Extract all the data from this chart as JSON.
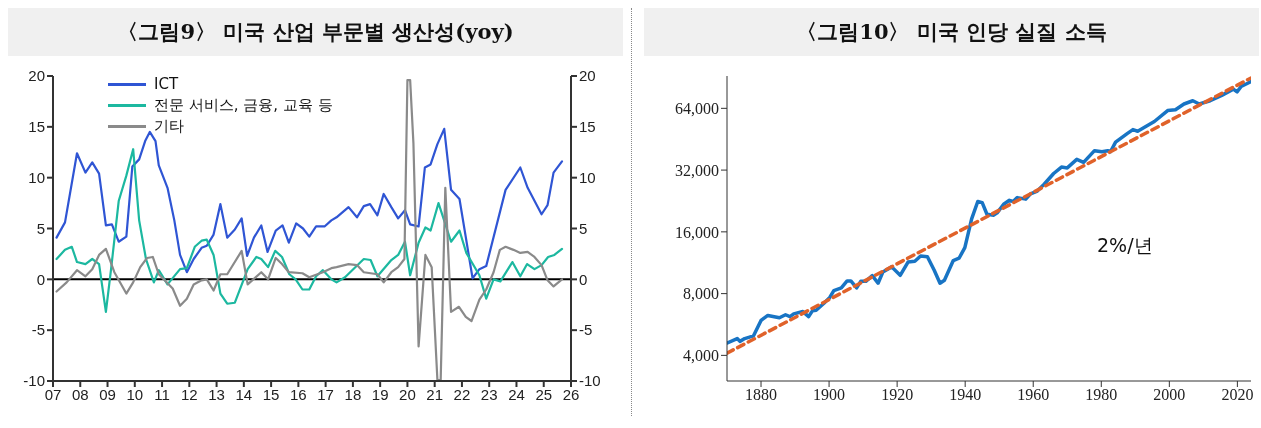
{
  "chart_data": [
    {
      "type": "line",
      "title": "〈그림9〉 미국 산업 부문별 생산성(yoy)",
      "xlim": [
        2007,
        2026
      ],
      "xticks": [
        {
          "value": 2007,
          "label": "07"
        },
        {
          "value": 2008,
          "label": "08"
        },
        {
          "value": 2009,
          "label": "09"
        },
        {
          "value": 2010,
          "label": "10"
        },
        {
          "value": 2011,
          "label": "11"
        },
        {
          "value": 2012,
          "label": "12"
        },
        {
          "value": 2013,
          "label": "13"
        },
        {
          "value": 2014,
          "label": "14"
        },
        {
          "value": 2015,
          "label": "15"
        },
        {
          "value": 2016,
          "label": "16"
        },
        {
          "value": 2017,
          "label": "17"
        },
        {
          "value": 2018,
          "label": "18"
        },
        {
          "value": 2019,
          "label": "19"
        },
        {
          "value": 2020,
          "label": "20"
        },
        {
          "value": 2021,
          "label": "21"
        },
        {
          "value": 2022,
          "label": "22"
        },
        {
          "value": 2023,
          "label": "23"
        },
        {
          "value": 2024,
          "label": "24"
        },
        {
          "value": 2025,
          "label": "25"
        },
        {
          "value": 2026,
          "label": "26"
        }
      ],
      "ylim": [
        -10,
        20
      ],
      "yticks": [
        -10,
        -5,
        0,
        5,
        10,
        15,
        20
      ],
      "y2lim": [
        -10,
        20
      ],
      "y2ticks": [
        -10,
        -5,
        0,
        5,
        10,
        15,
        20
      ],
      "legend": "top left",
      "grid": false,
      "ref_lines": [
        {
          "axis": "y",
          "value": 0,
          "color": "#000000"
        }
      ],
      "series": [
        {
          "name": "ICT",
          "color": "#2f55d4",
          "x": [
            2007.13,
            2007.44,
            2007.88,
            2008.19,
            2008.44,
            2008.69,
            2008.94,
            2009.16,
            2009.41,
            2009.69,
            2009.91,
            2010.16,
            2010.38,
            2010.55,
            2010.76,
            2010.88,
            2011.2,
            2011.45,
            2011.66,
            2011.91,
            2012.16,
            2012.45,
            2012.64,
            2012.89,
            2013.14,
            2013.39,
            2013.67,
            2013.92,
            2014.12,
            2014.37,
            2014.64,
            2014.87,
            2015.17,
            2015.42,
            2015.65,
            2015.92,
            2016.17,
            2016.4,
            2016.65,
            2016.96,
            2017.21,
            2017.4,
            2017.84,
            2018.15,
            2018.4,
            2018.63,
            2018.9,
            2019.13,
            2019.41,
            2019.66,
            2019.91,
            2020.1,
            2020.41,
            2020.64,
            2020.85,
            2021.1,
            2021.35,
            2021.6,
            2021.91,
            2022.39,
            2022.64,
            2022.89,
            2023.6,
            2024.14,
            2024.41,
            2024.92,
            2025.14,
            2025.36,
            2025.67
          ],
          "values": [
            4.1,
            5.6,
            12.4,
            10.5,
            11.5,
            10.4,
            5.3,
            5.4,
            3.7,
            4.2,
            11.1,
            11.8,
            13.6,
            14.5,
            13.6,
            11.2,
            9.0,
            5.8,
            2.4,
            0.7,
            2.0,
            3.1,
            3.3,
            4.4,
            7.4,
            4.1,
            4.9,
            6.0,
            2.3,
            4.1,
            5.3,
            2.7,
            4.8,
            5.3,
            3.6,
            5.5,
            5.0,
            4.2,
            5.2,
            5.2,
            5.8,
            6.1,
            7.1,
            6.1,
            7.2,
            7.4,
            6.3,
            8.4,
            7.1,
            6.0,
            6.8,
            5.4,
            5.2,
            11.0,
            11.3,
            13.3,
            14.8,
            8.8,
            7.9,
            0.1,
            1.0,
            1.3,
            8.8,
            11.0,
            9.0,
            6.4,
            7.3,
            10.5,
            11.6
          ]
        },
        {
          "name": "전문 서비스, 금융, 교육 등",
          "color": "#1cb8a0",
          "x": [
            2007.13,
            2007.44,
            2007.69,
            2007.88,
            2008.19,
            2008.44,
            2008.69,
            2008.94,
            2009.13,
            2009.41,
            2009.69,
            2009.94,
            2010.16,
            2010.41,
            2010.7,
            2010.88,
            2011.2,
            2011.66,
            2011.91,
            2012.2,
            2012.45,
            2012.64,
            2012.89,
            2013.14,
            2013.39,
            2013.67,
            2014.14,
            2014.46,
            2014.64,
            2014.89,
            2015.15,
            2015.4,
            2015.67,
            2015.9,
            2016.15,
            2016.4,
            2016.65,
            2016.9,
            2017.21,
            2017.4,
            2017.71,
            2018.4,
            2018.65,
            2018.9,
            2019.41,
            2019.66,
            2019.91,
            2020.1,
            2020.41,
            2020.66,
            2020.85,
            2021.14,
            2021.6,
            2021.91,
            2022.16,
            2022.64,
            2022.89,
            2023.16,
            2023.41,
            2023.85,
            2024.14,
            2024.39,
            2024.66,
            2024.92,
            2025.16,
            2025.39,
            2025.67
          ],
          "values": [
            2.0,
            2.9,
            3.2,
            1.7,
            1.5,
            2.0,
            1.5,
            -3.2,
            1.0,
            7.7,
            10.2,
            12.8,
            5.8,
            2.0,
            -0.3,
            0.9,
            -0.5,
            1.0,
            1.1,
            3.2,
            3.8,
            3.9,
            2.4,
            -1.4,
            -2.4,
            -2.3,
            1.0,
            2.2,
            2.0,
            1.2,
            2.8,
            2.2,
            0.5,
            0,
            -1.0,
            -1.0,
            0.3,
            0.9,
            0,
            -0.3,
            0.2,
            2.0,
            1.9,
            0.3,
            1.9,
            2.4,
            3.7,
            0.4,
            3.6,
            5.1,
            4.8,
            7.5,
            3.7,
            4.8,
            2.6,
            0.4,
            -1.9,
            0,
            -0.2,
            1.7,
            0.3,
            1.5,
            1.0,
            1.4,
            2.2,
            2.4,
            3.0
          ]
        },
        {
          "name": "기타",
          "color": "#8a8a8a",
          "x": [
            2007.13,
            2007.5,
            2007.88,
            2008.19,
            2008.44,
            2008.69,
            2008.94,
            2009.25,
            2009.69,
            2009.94,
            2010.2,
            2010.45,
            2010.66,
            2010.88,
            2011.39,
            2011.66,
            2011.91,
            2012.16,
            2012.45,
            2012.64,
            2012.89,
            2013.14,
            2013.39,
            2013.92,
            2014.14,
            2014.64,
            2014.89,
            2015.17,
            2015.4,
            2015.65,
            2016.15,
            2016.4,
            2016.9,
            2017.21,
            2017.4,
            2017.84,
            2018.15,
            2018.4,
            2018.9,
            2019.13,
            2019.41,
            2019.66,
            2019.89,
            2020.0,
            2020.1,
            2020.22,
            2020.41,
            2020.66,
            2020.89,
            2021.1,
            2021.22,
            2021.39,
            2021.6,
            2021.89,
            2022.14,
            2022.35,
            2022.64,
            2022.89,
            2023.16,
            2023.39,
            2023.6,
            2023.89,
            2024.14,
            2024.41,
            2024.66,
            2024.92,
            2025.14,
            2025.36,
            2025.67
          ],
          "values": [
            -1.2,
            -0.3,
            0.9,
            0.3,
            1.0,
            2.4,
            3.0,
            0.7,
            -1.4,
            -0.3,
            1.2,
            2.1,
            2.2,
            0.5,
            -0.9,
            -2.6,
            -1.9,
            -0.5,
            -0.1,
            0,
            -1.1,
            0.5,
            0.5,
            2.8,
            -0.5,
            0.7,
            0,
            2.1,
            1.5,
            0.7,
            0.6,
            0.2,
            0.7,
            1.1,
            1.2,
            1.5,
            1.4,
            0.7,
            0.5,
            -0.3,
            0.7,
            1.2,
            2.0,
            19.6,
            19.6,
            13.4,
            -6.6,
            2.4,
            1.2,
            -9.9,
            -9.9,
            9.0,
            -3.2,
            -2.7,
            -3.7,
            -4.1,
            -2.0,
            -1.0,
            0.7,
            2.9,
            3.2,
            2.9,
            2.6,
            2.7,
            2.2,
            1.4,
            -0.1,
            -0.7,
            0
          ]
        }
      ]
    },
    {
      "type": "line",
      "title": "〈그림10〉 미국 인당 실질 소득",
      "xlim": [
        1870,
        2024
      ],
      "xticks": [
        1880,
        1900,
        1920,
        1940,
        1960,
        1980,
        2000,
        2020
      ],
      "log": true,
      "ylim": [
        3000,
        92000
      ],
      "yticks": [
        {
          "value": 4000,
          "label": "4,000"
        },
        {
          "value": 8000,
          "label": "8,000"
        },
        {
          "value": 16000,
          "label": "16,000"
        },
        {
          "value": 32000,
          "label": "32,000"
        },
        {
          "value": 64000,
          "label": "64,000"
        }
      ],
      "grid": false,
      "legend": false,
      "annotations": [
        "2%/년"
      ],
      "series": [
        {
          "color": "#1874c4",
          "x": [
            1870.1,
            1873,
            1873.8,
            1875.2,
            1877.8,
            1880,
            1882,
            1885.4,
            1887.2,
            1888.5,
            1889.6,
            1892.3,
            1894,
            1895.1,
            1896.2,
            1898.5,
            1900.2,
            1901.4,
            1903.6,
            1905.3,
            1906.4,
            1908.1,
            1909.3,
            1910.8,
            1912.7,
            1914.4,
            1915.8,
            1918.4,
            1920.9,
            1923.2,
            1925.2,
            1926.9,
            1928.9,
            1930.9,
            1932.6,
            1933.9,
            1936.5,
            1938.2,
            1939.9,
            1941.9,
            1943.7,
            1945,
            1946.4,
            1948.4,
            1949.4,
            1951.3,
            1953,
            1954.1,
            1955.3,
            1957.8,
            1959.2,
            1961.2,
            1963.2,
            1966,
            1968.3,
            1970,
            1972.8,
            1974.8,
            1978,
            1980.2,
            1981.9,
            1982.7,
            1984.2,
            1987.6,
            1989.3,
            1990.7,
            1992.7,
            1995.6,
            1999.5,
            2001.8,
            2004.3,
            2006.9,
            2008.8,
            2012,
            2015.4,
            2018.8,
            2019.9,
            2021.1,
            2023.9
          ],
          "values": [
            4600,
            4830,
            4680,
            4830,
            4980,
            5920,
            6260,
            6100,
            6310,
            6180,
            6370,
            6540,
            6180,
            6590,
            6640,
            7180,
            7660,
            8280,
            8530,
            9220,
            9220,
            8530,
            9180,
            9180,
            9790,
            8990,
            10200,
            10800,
            9820,
            11400,
            11500,
            12200,
            12100,
            10400,
            8990,
            9300,
            11600,
            11900,
            13400,
            18500,
            22500,
            22200,
            19500,
            19300,
            19800,
            21800,
            22800,
            22500,
            23500,
            23100,
            24500,
            25300,
            27300,
            30800,
            33100,
            32800,
            36100,
            34900,
            39800,
            39300,
            39800,
            39300,
            43800,
            48200,
            50400,
            49500,
            51700,
            55200,
            62400,
            63000,
            67200,
            69700,
            67200,
            69700,
            74000,
            79400,
            77000,
            81800,
            86300
          ]
        },
        {
          "type": "line",
          "color": "#e0622a",
          "line_style": "dashed",
          "x": [
            1870,
            2024
          ],
          "values": [
            4100,
            90000
          ]
        }
      ]
    }
  ]
}
